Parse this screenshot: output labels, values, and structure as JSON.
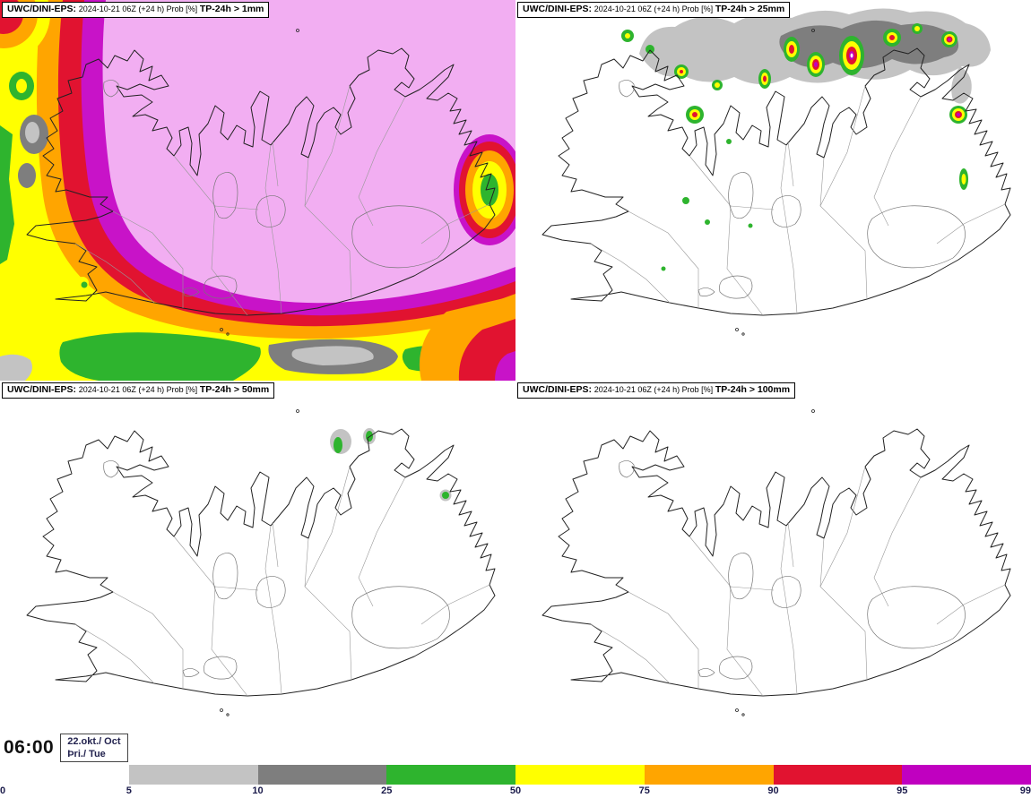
{
  "panels": [
    {
      "source": "UWC/DINI-EPS:",
      "info": "2024-10-21 06Z (+24 h) Prob [%]",
      "threshold": "TP-24h > 1mm"
    },
    {
      "source": "UWC/DINI-EPS:",
      "info": "2024-10-21 06Z (+24 h) Prob [%]",
      "threshold": "TP-24h > 25mm"
    },
    {
      "source": "UWC/DINI-EPS:",
      "info": "2024-10-21 06Z (+24 h) Prob [%]",
      "threshold": "TP-24h > 50mm"
    },
    {
      "source": "UWC/DINI-EPS:",
      "info": "2024-10-21 06Z (+24 h) Prob [%]",
      "threshold": "TP-24h > 100mm"
    }
  ],
  "footer": {
    "time": "06:00",
    "date_day": "22.okt./ Oct",
    "date_weekday": "Þri./ Tue"
  },
  "colorbar": {
    "ticks": [
      "0",
      "5",
      "10",
      "25",
      "50",
      "75",
      "90",
      "95",
      "99"
    ],
    "segment_colors": [
      "#ffffff",
      "#c3c3c3",
      "#7e7e7e",
      "#2eb42e",
      "#ffff00",
      "#ffa500",
      "#e11330",
      "#c000c0"
    ],
    "above_max_color": "#f2aef2"
  }
}
